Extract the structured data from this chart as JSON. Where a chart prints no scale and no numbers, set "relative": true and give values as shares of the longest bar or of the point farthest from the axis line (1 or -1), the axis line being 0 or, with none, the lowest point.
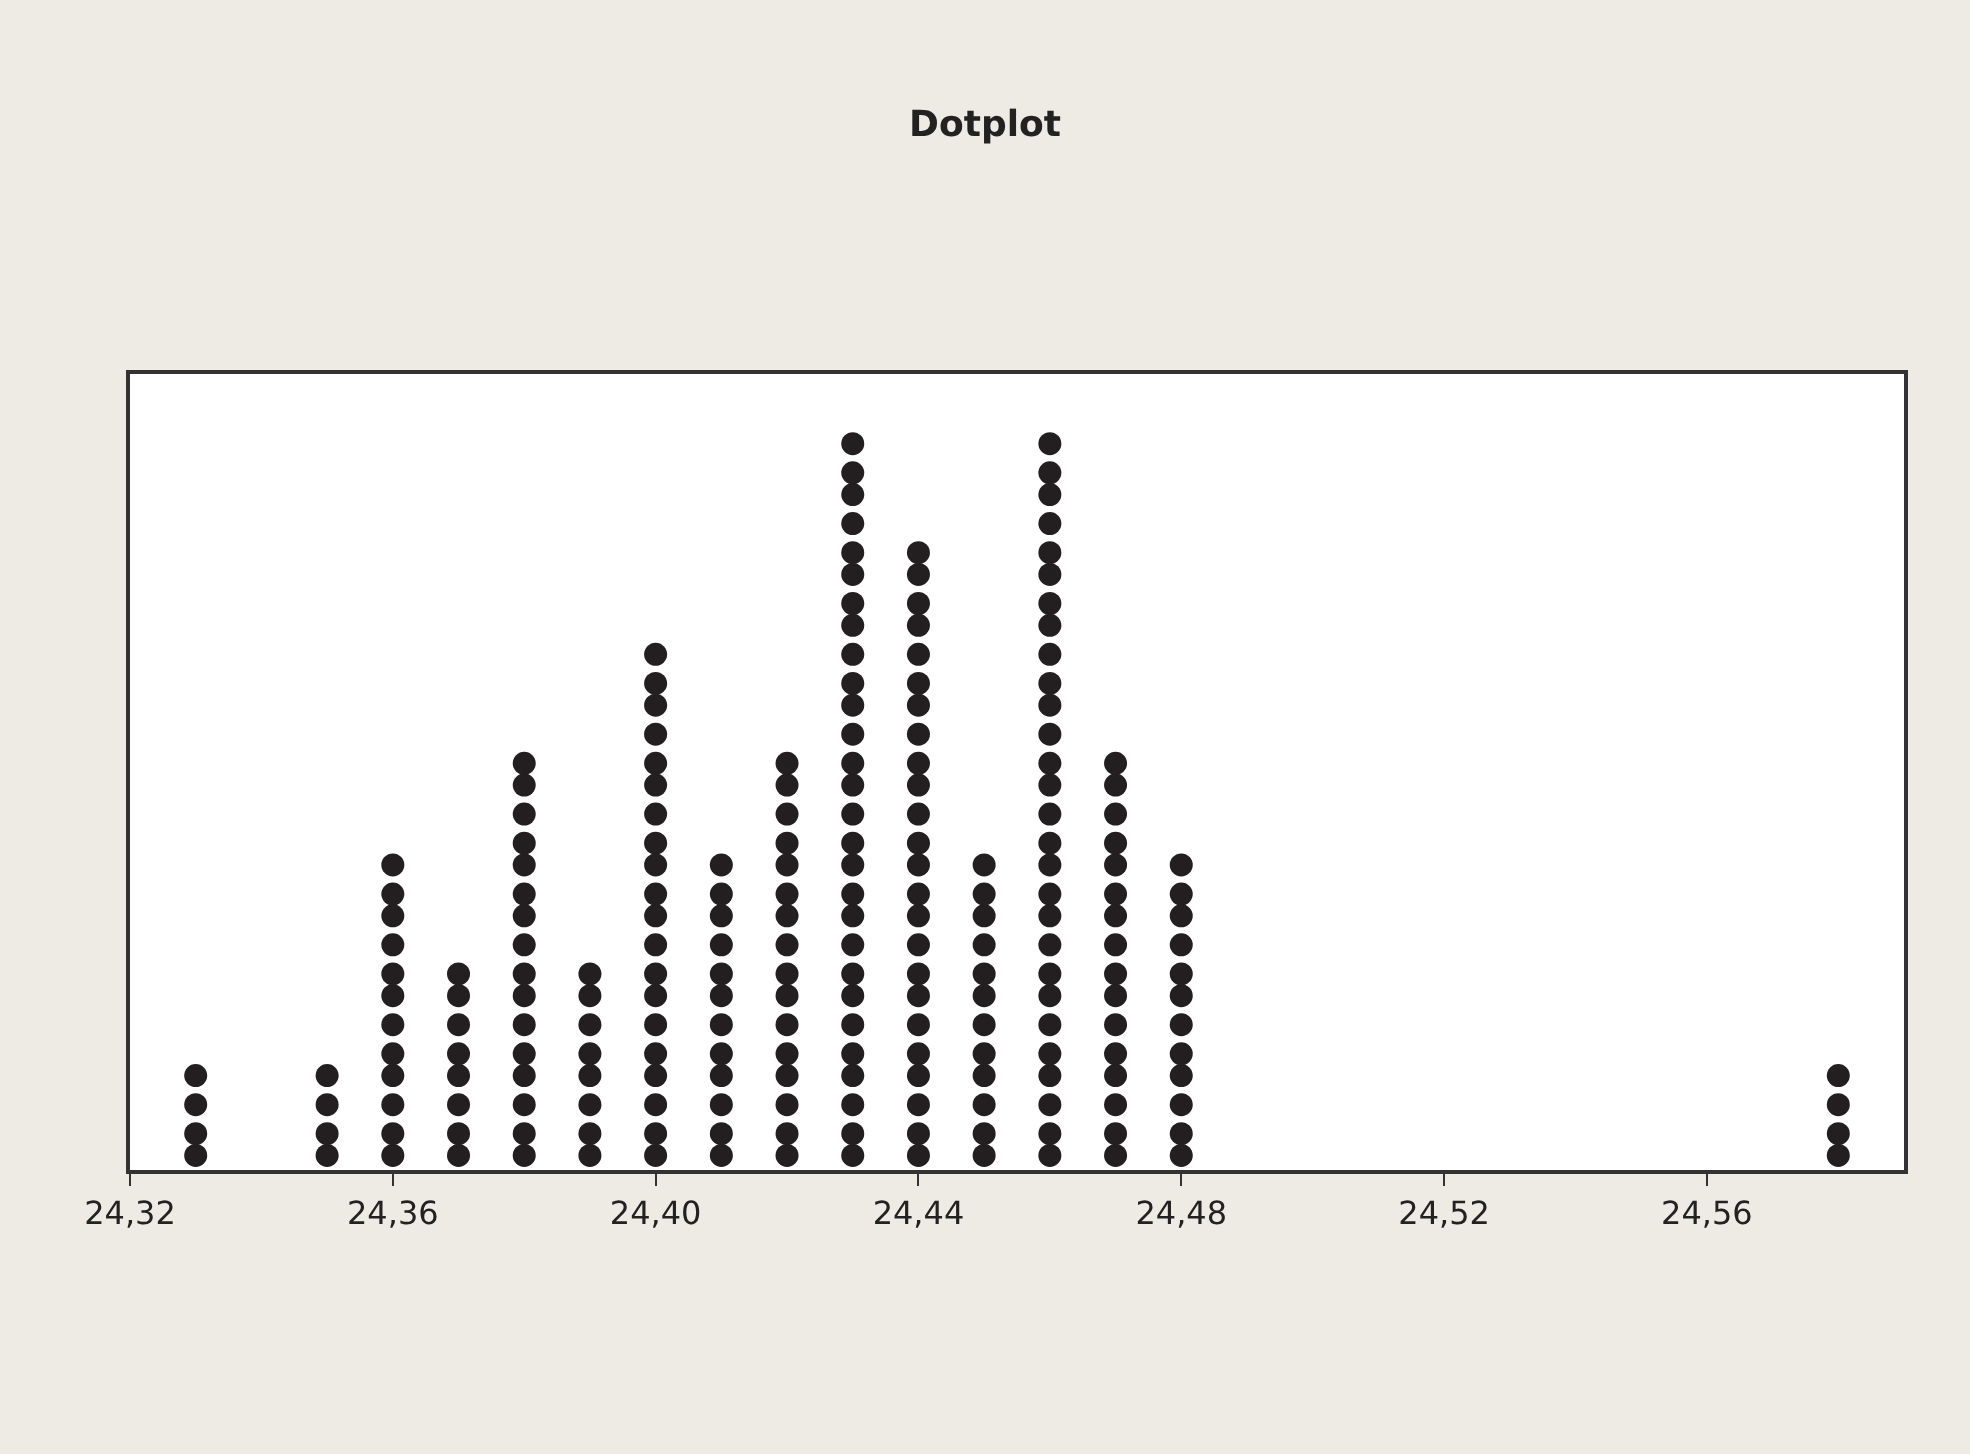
{
  "chart_data": {
    "type": "scatter",
    "title": "Dotplot",
    "relative": true,
    "series": [
      {
        "color": "#231f20",
        "x": [
          24.33,
          24.33,
          24.33,
          24.33
        ],
        "values": [
          0.02,
          0.05,
          0.09,
          0.13
        ]
      },
      {
        "color": "#231f20",
        "x": [
          24.35,
          24.35,
          24.35,
          24.35
        ],
        "values": [
          0.02,
          0.05,
          0.09,
          0.13
        ]
      },
      {
        "color": "#231f20",
        "x": [
          24.36,
          24.36,
          24.36,
          24.36,
          24.36,
          24.36,
          24.36,
          24.36,
          24.36,
          24.36,
          24.36,
          24.36
        ],
        "values": [
          0.02,
          0.05,
          0.09,
          0.13,
          0.16,
          0.2,
          0.24,
          0.27,
          0.31,
          0.35,
          0.38,
          0.42
        ]
      },
      {
        "color": "#231f20",
        "x": [
          24.37,
          24.37,
          24.37,
          24.37,
          24.37,
          24.37,
          24.37,
          24.37
        ],
        "values": [
          0.02,
          0.05,
          0.09,
          0.13,
          0.16,
          0.2,
          0.24,
          0.27
        ]
      },
      {
        "color": "#231f20",
        "x": [
          24.38,
          24.38,
          24.38,
          24.38,
          24.38,
          24.38,
          24.38,
          24.38,
          24.38,
          24.38,
          24.38,
          24.38,
          24.38,
          24.38,
          24.38,
          24.38
        ],
        "values": [
          0.02,
          0.05,
          0.09,
          0.13,
          0.16,
          0.2,
          0.24,
          0.27,
          0.31,
          0.35,
          0.38,
          0.42,
          0.45,
          0.49,
          0.53,
          0.56
        ]
      },
      {
        "color": "#231f20",
        "x": [
          24.39,
          24.39,
          24.39,
          24.39,
          24.39,
          24.39,
          24.39,
          24.39
        ],
        "values": [
          0.02,
          0.05,
          0.09,
          0.13,
          0.16,
          0.2,
          0.24,
          0.27
        ]
      },
      {
        "color": "#231f20",
        "x": [
          24.4,
          24.4,
          24.4,
          24.4,
          24.4,
          24.4,
          24.4,
          24.4,
          24.4,
          24.4,
          24.4,
          24.4,
          24.4,
          24.4,
          24.4,
          24.4,
          24.4,
          24.4,
          24.4,
          24.4
        ],
        "values": [
          0.02,
          0.05,
          0.09,
          0.13,
          0.16,
          0.2,
          0.24,
          0.27,
          0.31,
          0.35,
          0.38,
          0.42,
          0.45,
          0.49,
          0.53,
          0.56,
          0.6,
          0.64,
          0.67,
          0.71
        ]
      },
      {
        "color": "#231f20",
        "x": [
          24.41,
          24.41,
          24.41,
          24.41,
          24.41,
          24.41,
          24.41,
          24.41,
          24.41,
          24.41,
          24.41,
          24.41
        ],
        "values": [
          0.02,
          0.05,
          0.09,
          0.13,
          0.16,
          0.2,
          0.24,
          0.27,
          0.31,
          0.35,
          0.38,
          0.42
        ]
      },
      {
        "color": "#231f20",
        "x": [
          24.42,
          24.42,
          24.42,
          24.42,
          24.42,
          24.42,
          24.42,
          24.42,
          24.42,
          24.42,
          24.42,
          24.42,
          24.42,
          24.42,
          24.42,
          24.42
        ],
        "values": [
          0.02,
          0.05,
          0.09,
          0.13,
          0.16,
          0.2,
          0.24,
          0.27,
          0.31,
          0.35,
          0.38,
          0.42,
          0.45,
          0.49,
          0.53,
          0.56
        ]
      },
      {
        "color": "#231f20",
        "x": [
          24.43,
          24.43,
          24.43,
          24.43,
          24.43,
          24.43,
          24.43,
          24.43,
          24.43,
          24.43,
          24.43,
          24.43,
          24.43,
          24.43,
          24.43,
          24.43,
          24.43,
          24.43,
          24.43,
          24.43,
          24.43,
          24.43,
          24.43,
          24.43,
          24.43,
          24.43,
          24.43,
          24.43
        ],
        "values": [
          0.02,
          0.05,
          0.09,
          0.13,
          0.16,
          0.2,
          0.24,
          0.27,
          0.31,
          0.35,
          0.38,
          0.42,
          0.45,
          0.49,
          0.53,
          0.56,
          0.6,
          0.64,
          0.67,
          0.71,
          0.75,
          0.78,
          0.82,
          0.85,
          0.89,
          0.93,
          0.96,
          1
        ]
      },
      {
        "color": "#231f20",
        "x": [
          24.44,
          24.44,
          24.44,
          24.44,
          24.44,
          24.44,
          24.44,
          24.44,
          24.44,
          24.44,
          24.44,
          24.44,
          24.44,
          24.44,
          24.44,
          24.44,
          24.44,
          24.44,
          24.44,
          24.44,
          24.44,
          24.44,
          24.44,
          24.44
        ],
        "values": [
          0.02,
          0.05,
          0.09,
          0.13,
          0.16,
          0.2,
          0.24,
          0.27,
          0.31,
          0.35,
          0.38,
          0.42,
          0.45,
          0.49,
          0.53,
          0.56,
          0.6,
          0.64,
          0.67,
          0.71,
          0.75,
          0.78,
          0.82,
          0.85
        ]
      },
      {
        "color": "#231f20",
        "x": [
          24.45,
          24.45,
          24.45,
          24.45,
          24.45,
          24.45,
          24.45,
          24.45,
          24.45,
          24.45,
          24.45,
          24.45
        ],
        "values": [
          0.02,
          0.05,
          0.09,
          0.13,
          0.16,
          0.2,
          0.24,
          0.27,
          0.31,
          0.35,
          0.38,
          0.42
        ]
      },
      {
        "color": "#231f20",
        "x": [
          24.46,
          24.46,
          24.46,
          24.46,
          24.46,
          24.46,
          24.46,
          24.46,
          24.46,
          24.46,
          24.46,
          24.46,
          24.46,
          24.46,
          24.46,
          24.46,
          24.46,
          24.46,
          24.46,
          24.46,
          24.46,
          24.46,
          24.46,
          24.46,
          24.46,
          24.46,
          24.46,
          24.46
        ],
        "values": [
          0.02,
          0.05,
          0.09,
          0.13,
          0.16,
          0.2,
          0.24,
          0.27,
          0.31,
          0.35,
          0.38,
          0.42,
          0.45,
          0.49,
          0.53,
          0.56,
          0.6,
          0.64,
          0.67,
          0.71,
          0.75,
          0.78,
          0.82,
          0.85,
          0.89,
          0.93,
          0.96,
          1
        ]
      },
      {
        "color": "#231f20",
        "x": [
          24.47,
          24.47,
          24.47,
          24.47,
          24.47,
          24.47,
          24.47,
          24.47,
          24.47,
          24.47,
          24.47,
          24.47,
          24.47,
          24.47,
          24.47,
          24.47
        ],
        "values": [
          0.02,
          0.05,
          0.09,
          0.13,
          0.16,
          0.2,
          0.24,
          0.27,
          0.31,
          0.35,
          0.38,
          0.42,
          0.45,
          0.49,
          0.53,
          0.56
        ]
      },
      {
        "color": "#231f20",
        "x": [
          24.48,
          24.48,
          24.48,
          24.48,
          24.48,
          24.48,
          24.48,
          24.48,
          24.48,
          24.48,
          24.48,
          24.48
        ],
        "values": [
          0.02,
          0.05,
          0.09,
          0.13,
          0.16,
          0.2,
          0.24,
          0.27,
          0.31,
          0.35,
          0.38,
          0.42
        ]
      },
      {
        "color": "#231f20",
        "x": [
          24.58,
          24.58,
          24.58,
          24.58
        ],
        "values": [
          0.02,
          0.05,
          0.09,
          0.13
        ]
      }
    ],
    "xlim": [
      24.32,
      24.59
    ],
    "xticks": [
      {
        "value": 24.32,
        "label": "24,32"
      },
      {
        "value": 24.36,
        "label": "24,36"
      },
      {
        "value": 24.4,
        "label": "24,40"
      },
      {
        "value": 24.44,
        "label": "24,44"
      },
      {
        "value": 24.48,
        "label": "24,48"
      },
      {
        "value": 24.52,
        "label": "24,52"
      },
      {
        "value": 24.56,
        "label": "24,56"
      }
    ],
    "tick_labels": "x",
    "marker": "circle"
  }
}
